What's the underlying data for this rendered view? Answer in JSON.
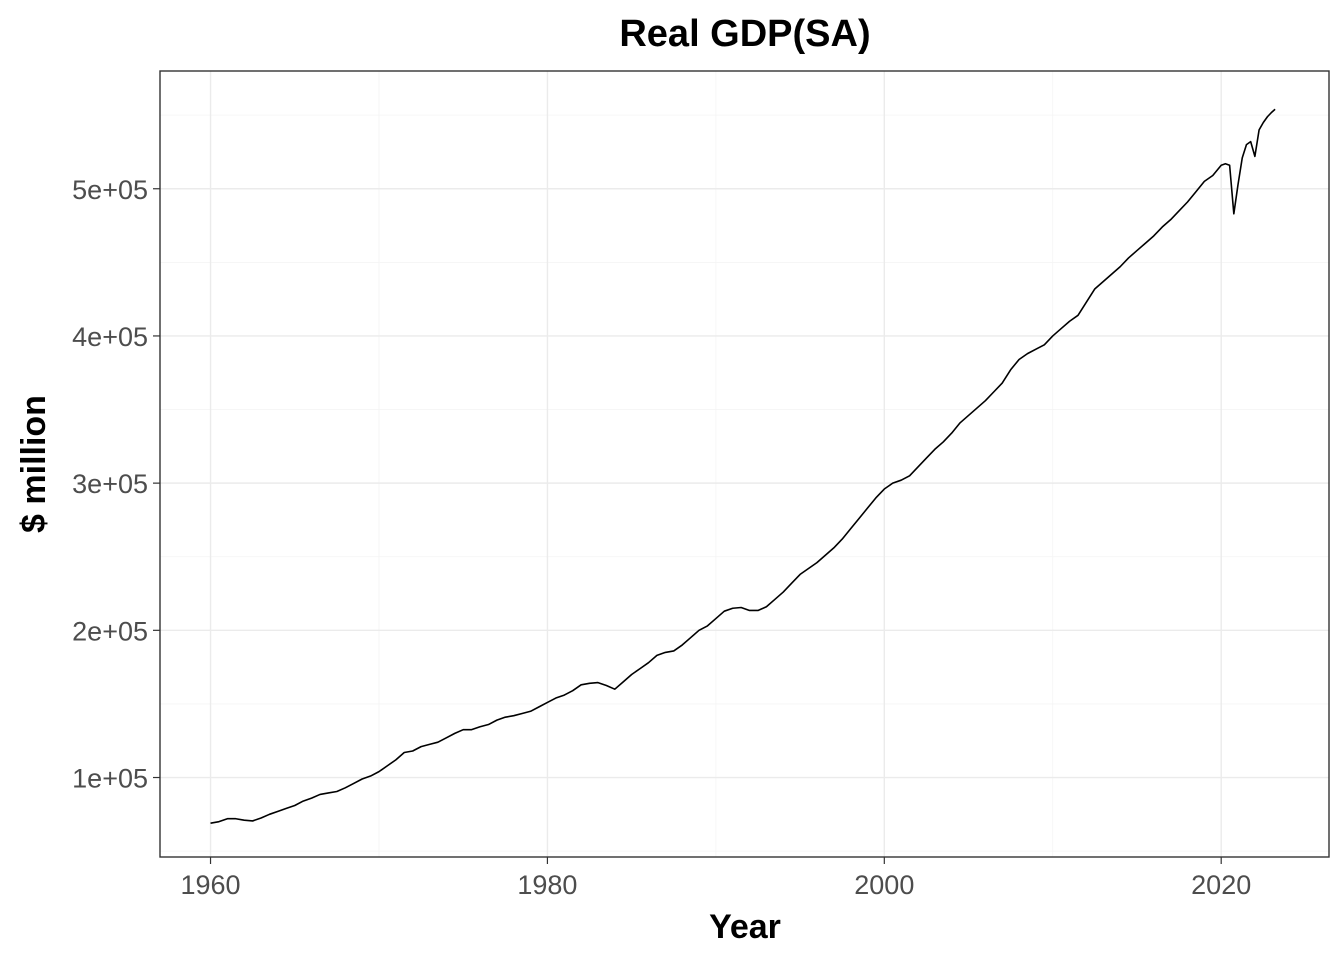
{
  "chart_data": {
    "type": "line",
    "title": "Real GDP(SA)",
    "xlabel": "Year",
    "ylabel": "$ million",
    "xlim": [
      1957,
      2026.4
    ],
    "ylim": [
      46000,
      580000
    ],
    "x_ticks": [
      1960,
      1980,
      2000,
      2020
    ],
    "x_tick_labels": [
      "1960",
      "1980",
      "2000",
      "2020"
    ],
    "y_ticks": [
      100000,
      200000,
      300000,
      400000,
      500000
    ],
    "y_tick_labels": [
      "1e+05",
      "2e+05",
      "3e+05",
      "4e+05",
      "5e+05"
    ],
    "grid": true,
    "legend": "none",
    "series": [
      {
        "color": "#000000",
        "points": [
          [
            1960.0,
            69000
          ],
          [
            1960.5,
            70000
          ],
          [
            1961.0,
            72000
          ],
          [
            1961.5,
            72000
          ],
          [
            1962.0,
            71000
          ],
          [
            1962.5,
            70500
          ],
          [
            1963.0,
            72500
          ],
          [
            1963.5,
            75000
          ],
          [
            1964.0,
            77000
          ],
          [
            1964.5,
            79000
          ],
          [
            1965.0,
            81000
          ],
          [
            1965.5,
            84000
          ],
          [
            1966.0,
            86000
          ],
          [
            1966.5,
            88500
          ],
          [
            1967.0,
            89500
          ],
          [
            1967.5,
            90500
          ],
          [
            1968.0,
            93000
          ],
          [
            1968.5,
            96000
          ],
          [
            1969.0,
            99000
          ],
          [
            1969.5,
            101000
          ],
          [
            1970.0,
            104000
          ],
          [
            1970.5,
            108000
          ],
          [
            1971.0,
            112000
          ],
          [
            1971.5,
            117000
          ],
          [
            1972.0,
            118000
          ],
          [
            1972.5,
            121000
          ],
          [
            1973.0,
            122500
          ],
          [
            1973.5,
            124000
          ],
          [
            1974.0,
            127000
          ],
          [
            1974.5,
            130000
          ],
          [
            1975.0,
            132500
          ],
          [
            1975.5,
            132500
          ],
          [
            1976.0,
            134500
          ],
          [
            1976.5,
            136000
          ],
          [
            1977.0,
            139000
          ],
          [
            1977.5,
            141000
          ],
          [
            1978.0,
            142000
          ],
          [
            1978.5,
            143500
          ],
          [
            1979.0,
            145000
          ],
          [
            1979.5,
            148000
          ],
          [
            1980.0,
            151000
          ],
          [
            1980.5,
            154000
          ],
          [
            1981.0,
            156000
          ],
          [
            1981.5,
            159000
          ],
          [
            1982.0,
            163000
          ],
          [
            1982.5,
            164000
          ],
          [
            1983.0,
            164500
          ],
          [
            1983.5,
            162500
          ],
          [
            1984.0,
            160000
          ],
          [
            1984.5,
            165000
          ],
          [
            1985.0,
            170000
          ],
          [
            1985.5,
            174000
          ],
          [
            1986.0,
            178000
          ],
          [
            1986.5,
            183000
          ],
          [
            1987.0,
            185000
          ],
          [
            1987.5,
            186000
          ],
          [
            1988.0,
            190000
          ],
          [
            1988.5,
            195000
          ],
          [
            1989.0,
            200000
          ],
          [
            1989.5,
            203000
          ],
          [
            1990.0,
            208000
          ],
          [
            1990.5,
            213000
          ],
          [
            1991.0,
            215000
          ],
          [
            1991.5,
            215500
          ],
          [
            1992.0,
            213500
          ],
          [
            1992.5,
            213500
          ],
          [
            1993.0,
            216000
          ],
          [
            1993.5,
            221000
          ],
          [
            1994.0,
            226000
          ],
          [
            1994.5,
            232000
          ],
          [
            1995.0,
            238000
          ],
          [
            1995.5,
            242000
          ],
          [
            1996.0,
            246000
          ],
          [
            1996.5,
            251000
          ],
          [
            1997.0,
            256000
          ],
          [
            1997.5,
            262000
          ],
          [
            1998.0,
            269000
          ],
          [
            1998.5,
            276000
          ],
          [
            1999.0,
            283000
          ],
          [
            1999.5,
            290000
          ],
          [
            2000.0,
            296000
          ],
          [
            2000.5,
            300000
          ],
          [
            2001.0,
            302000
          ],
          [
            2001.5,
            305000
          ],
          [
            2002.0,
            311000
          ],
          [
            2002.5,
            317000
          ],
          [
            2003.0,
            323000
          ],
          [
            2003.5,
            328000
          ],
          [
            2004.0,
            334000
          ],
          [
            2004.5,
            341000
          ],
          [
            2005.0,
            346000
          ],
          [
            2005.5,
            351000
          ],
          [
            2006.0,
            356000
          ],
          [
            2006.5,
            362000
          ],
          [
            2007.0,
            368000
          ],
          [
            2007.5,
            377000
          ],
          [
            2008.0,
            384000
          ],
          [
            2008.5,
            388000
          ],
          [
            2009.0,
            391000
          ],
          [
            2009.5,
            394000
          ],
          [
            2010.0,
            400000
          ],
          [
            2010.5,
            405000
          ],
          [
            2011.0,
            410000
          ],
          [
            2011.5,
            414000
          ],
          [
            2012.0,
            423000
          ],
          [
            2012.5,
            432000
          ],
          [
            2013.0,
            437000
          ],
          [
            2013.5,
            442000
          ],
          [
            2014.0,
            447000
          ],
          [
            2014.5,
            453000
          ],
          [
            2015.0,
            458000
          ],
          [
            2015.5,
            463000
          ],
          [
            2016.0,
            468000
          ],
          [
            2016.5,
            474000
          ],
          [
            2017.0,
            479000
          ],
          [
            2017.5,
            485000
          ],
          [
            2018.0,
            491000
          ],
          [
            2018.5,
            498000
          ],
          [
            2019.0,
            505000
          ],
          [
            2019.5,
            509000
          ],
          [
            2020.0,
            516000
          ],
          [
            2020.25,
            517000
          ],
          [
            2020.5,
            516000
          ],
          [
            2020.75,
            483000
          ],
          [
            2021.0,
            503000
          ],
          [
            2021.25,
            521000
          ],
          [
            2021.5,
            530000
          ],
          [
            2021.75,
            532000
          ],
          [
            2022.0,
            522000
          ],
          [
            2022.25,
            540000
          ],
          [
            2022.5,
            545000
          ],
          [
            2022.75,
            549000
          ],
          [
            2023.0,
            552000
          ],
          [
            2023.2,
            554000
          ]
        ]
      }
    ]
  }
}
